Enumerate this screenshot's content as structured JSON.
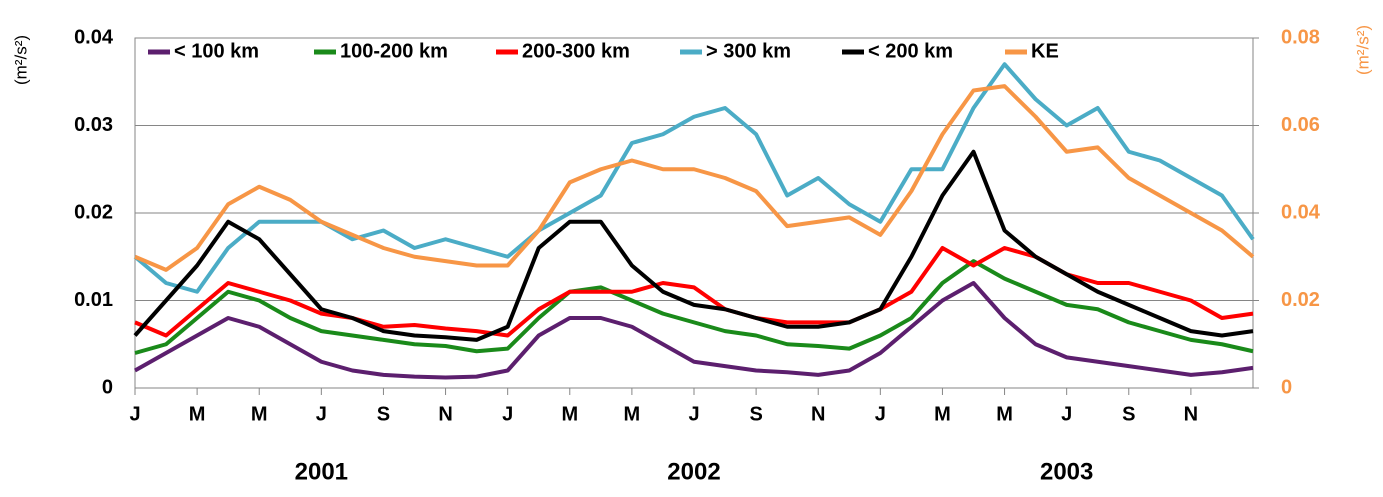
{
  "chart_data": {
    "type": "line",
    "y_label": "(m²/s²)",
    "y2_label": "(m²/s²)",
    "annotations": [
      "2001",
      "2002",
      "2003"
    ],
    "x": [
      0,
      1,
      2,
      3,
      4,
      5,
      6,
      7,
      8,
      9,
      10,
      11,
      12,
      13,
      14,
      15,
      16,
      17,
      18,
      19,
      20,
      21,
      22,
      23,
      24,
      25,
      26,
      27,
      28,
      29,
      30,
      31,
      32,
      33,
      34,
      35,
      36
    ],
    "xlim": [
      0,
      36
    ],
    "xticks": [
      {
        "value": 0,
        "label": "J"
      },
      {
        "value": 2,
        "label": "M"
      },
      {
        "value": 4,
        "label": "M"
      },
      {
        "value": 6,
        "label": "J"
      },
      {
        "value": 8,
        "label": "S"
      },
      {
        "value": 10,
        "label": "N"
      },
      {
        "value": 12,
        "label": "J"
      },
      {
        "value": 14,
        "label": "M"
      },
      {
        "value": 16,
        "label": "M"
      },
      {
        "value": 18,
        "label": "J"
      },
      {
        "value": 20,
        "label": "S"
      },
      {
        "value": 22,
        "label": "N"
      },
      {
        "value": 24,
        "label": "J"
      },
      {
        "value": 26,
        "label": "M"
      },
      {
        "value": 28,
        "label": "M"
      },
      {
        "value": 30,
        "label": "J"
      },
      {
        "value": 32,
        "label": "S"
      },
      {
        "value": 34,
        "label": "N"
      }
    ],
    "ylim": [
      0,
      0.04
    ],
    "yticks": [
      0,
      0.01,
      0.02,
      0.03,
      0.04
    ],
    "y2lim": [
      0,
      0.08
    ],
    "y2ticks": [
      0,
      0.02,
      0.04,
      0.06,
      0.08
    ],
    "y2_color": "#f79646",
    "grid": true,
    "series": [
      {
        "name": "< 100 km",
        "color": "#5c1f6e",
        "values": [
          0.002,
          0.004,
          0.006,
          0.008,
          0.007,
          0.005,
          0.003,
          0.002,
          0.0015,
          0.0013,
          0.0012,
          0.0013,
          0.002,
          0.006,
          0.008,
          0.008,
          0.007,
          0.005,
          0.003,
          0.0025,
          0.002,
          0.0018,
          0.0015,
          0.002,
          0.004,
          0.007,
          0.01,
          0.012,
          0.008,
          0.005,
          0.0035,
          0.003,
          0.0025,
          0.002,
          0.0015,
          0.0018,
          0.0023
        ]
      },
      {
        "name": "100-200 km",
        "color": "#1a8a1a",
        "values": [
          0.004,
          0.005,
          0.008,
          0.011,
          0.01,
          0.008,
          0.0065,
          0.006,
          0.0055,
          0.005,
          0.0048,
          0.0042,
          0.0045,
          0.008,
          0.011,
          0.0115,
          0.01,
          0.0085,
          0.0075,
          0.0065,
          0.006,
          0.005,
          0.0048,
          0.0045,
          0.006,
          0.008,
          0.012,
          0.0145,
          0.0125,
          0.011,
          0.0095,
          0.009,
          0.0075,
          0.0065,
          0.0055,
          0.005,
          0.0042
        ]
      },
      {
        "name": "200-300 km",
        "color": "#ff0000",
        "values": [
          0.0075,
          0.006,
          0.009,
          0.012,
          0.011,
          0.01,
          0.0085,
          0.008,
          0.007,
          0.0072,
          0.0068,
          0.0065,
          0.006,
          0.009,
          0.011,
          0.011,
          0.011,
          0.012,
          0.0115,
          0.009,
          0.008,
          0.0075,
          0.0075,
          0.0075,
          0.009,
          0.011,
          0.016,
          0.014,
          0.016,
          0.015,
          0.013,
          0.012,
          0.012,
          0.011,
          0.01,
          0.008,
          0.0085
        ]
      },
      {
        "name": "> 300 km",
        "color": "#4bacc6",
        "values": [
          0.015,
          0.012,
          0.011,
          0.016,
          0.019,
          0.019,
          0.019,
          0.017,
          0.018,
          0.016,
          0.017,
          0.016,
          0.015,
          0.018,
          0.02,
          0.022,
          0.028,
          0.029,
          0.031,
          0.032,
          0.029,
          0.022,
          0.024,
          0.021,
          0.019,
          0.025,
          0.025,
          0.032,
          0.037,
          0.033,
          0.03,
          0.032,
          0.027,
          0.026,
          0.024,
          0.022,
          0.017
        ]
      },
      {
        "name": "< 200 km",
        "color": "#000000",
        "values": [
          0.006,
          0.01,
          0.014,
          0.019,
          0.017,
          0.013,
          0.009,
          0.008,
          0.0065,
          0.006,
          0.0058,
          0.0055,
          0.007,
          0.016,
          0.019,
          0.019,
          0.014,
          0.011,
          0.0095,
          0.009,
          0.008,
          0.007,
          0.007,
          0.0075,
          0.009,
          0.015,
          0.022,
          0.027,
          0.018,
          0.015,
          0.013,
          0.011,
          0.0095,
          0.008,
          0.0065,
          0.006,
          0.0065
        ]
      },
      {
        "name": "KE",
        "color": "#f79646",
        "axis": "y2",
        "values": [
          0.03,
          0.027,
          0.032,
          0.042,
          0.046,
          0.043,
          0.038,
          0.035,
          0.032,
          0.03,
          0.029,
          0.028,
          0.028,
          0.036,
          0.047,
          0.05,
          0.052,
          0.05,
          0.05,
          0.048,
          0.045,
          0.037,
          0.038,
          0.039,
          0.035,
          0.045,
          0.058,
          0.068,
          0.069,
          0.062,
          0.054,
          0.055,
          0.048,
          0.044,
          0.04,
          0.036,
          0.03
        ]
      }
    ]
  }
}
